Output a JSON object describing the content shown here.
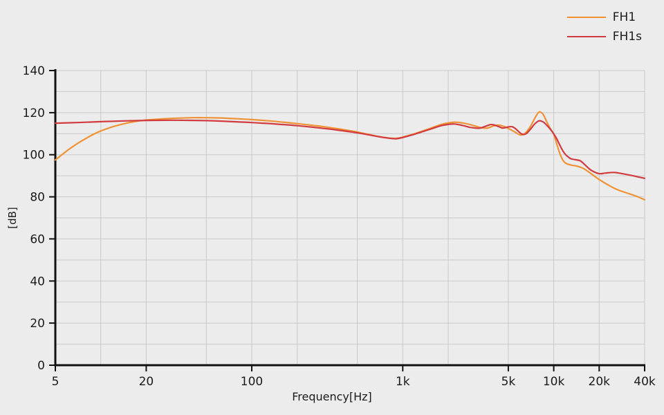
{
  "colors": {
    "background": "#ECECEC",
    "grid": "#C9C9C9",
    "axis": "#111111",
    "text": "#1A1A1A",
    "fh1_orange": "#EF9234",
    "fh1s_red": "#D13B40"
  },
  "chart_data": {
    "type": "line",
    "title": "",
    "xlabel": "Frequency[Hz]",
    "ylabel": "[dB]",
    "x_scale": "log",
    "xlim": [
      5,
      40000
    ],
    "ylim": [
      0,
      140
    ],
    "grid": true,
    "legend_position": "top-right",
    "x_major_ticks": [
      {
        "v": 5,
        "label": "5"
      },
      {
        "v": 20,
        "label": "20"
      },
      {
        "v": 100,
        "label": "100"
      },
      {
        "v": 1000,
        "label": "1k"
      },
      {
        "v": 5000,
        "label": "5k"
      },
      {
        "v": 10000,
        "label": "10k"
      },
      {
        "v": 20000,
        "label": "20k"
      },
      {
        "v": 40000,
        "label": "40k"
      }
    ],
    "x_grid": [
      10,
      20,
      50,
      100,
      200,
      500,
      1000,
      2000,
      5000,
      10000,
      20000,
      40000
    ],
    "y_ticks": [
      0,
      20,
      40,
      60,
      80,
      100,
      120,
      140
    ],
    "y_grid_step": 10,
    "series": [
      {
        "name": "FH1",
        "color": "#EF9234",
        "points": [
          [
            5,
            97.5
          ],
          [
            6,
            102
          ],
          [
            7,
            105.3
          ],
          [
            8,
            107.8
          ],
          [
            9,
            109.8
          ],
          [
            10,
            111.3
          ],
          [
            12,
            113.3
          ],
          [
            14,
            114.6
          ],
          [
            17,
            115.8
          ],
          [
            20,
            116.5
          ],
          [
            25,
            117
          ],
          [
            30,
            117.3
          ],
          [
            40,
            117.6
          ],
          [
            50,
            117.6
          ],
          [
            60,
            117.5
          ],
          [
            80,
            117.1
          ],
          [
            100,
            116.7
          ],
          [
            130,
            116.1
          ],
          [
            160,
            115.5
          ],
          [
            200,
            114.8
          ],
          [
            250,
            114
          ],
          [
            300,
            113.3
          ],
          [
            400,
            112
          ],
          [
            500,
            110.8
          ],
          [
            600,
            109.6
          ],
          [
            700,
            108.6
          ],
          [
            800,
            108
          ],
          [
            900,
            107.8
          ],
          [
            1000,
            108.4
          ],
          [
            1200,
            110
          ],
          [
            1500,
            112.4
          ],
          [
            1800,
            114.4
          ],
          [
            2000,
            115.1
          ],
          [
            2200,
            115.5
          ],
          [
            2500,
            115.1
          ],
          [
            2800,
            114.3
          ],
          [
            3200,
            113.1
          ],
          [
            3600,
            112.6
          ],
          [
            4000,
            113.7
          ],
          [
            4300,
            114.1
          ],
          [
            4700,
            113.4
          ],
          [
            5000,
            112.5
          ],
          [
            5500,
            110.9
          ],
          [
            6000,
            109.4
          ],
          [
            6500,
            110.4
          ],
          [
            7000,
            113.4
          ],
          [
            7500,
            117.4
          ],
          [
            8000,
            120.3
          ],
          [
            8500,
            119.2
          ],
          [
            9000,
            115.6
          ],
          [
            9500,
            112.4
          ],
          [
            10000,
            109.8
          ],
          [
            10500,
            104.8
          ],
          [
            11000,
            100.4
          ],
          [
            11500,
            97.4
          ],
          [
            12000,
            96
          ],
          [
            13000,
            95.1
          ],
          [
            14000,
            94.7
          ],
          [
            15000,
            94.1
          ],
          [
            16000,
            93.2
          ],
          [
            18000,
            90.6
          ],
          [
            20000,
            88.2
          ],
          [
            23000,
            85.6
          ],
          [
            26000,
            83.6
          ],
          [
            30000,
            82
          ],
          [
            35000,
            80.4
          ],
          [
            40000,
            78.6
          ]
        ]
      },
      {
        "name": "FH1s",
        "color": "#D13B40",
        "points": [
          [
            5,
            115
          ],
          [
            7,
            115.3
          ],
          [
            10,
            115.7
          ],
          [
            15,
            116.1
          ],
          [
            20,
            116.3
          ],
          [
            30,
            116.4
          ],
          [
            50,
            116.2
          ],
          [
            70,
            115.8
          ],
          [
            100,
            115.3
          ],
          [
            150,
            114.5
          ],
          [
            200,
            113.8
          ],
          [
            300,
            112.5
          ],
          [
            400,
            111.4
          ],
          [
            500,
            110.4
          ],
          [
            600,
            109.4
          ],
          [
            700,
            108.5
          ],
          [
            800,
            107.9
          ],
          [
            900,
            107.6
          ],
          [
            1000,
            108.2
          ],
          [
            1200,
            109.8
          ],
          [
            1500,
            112
          ],
          [
            1800,
            113.8
          ],
          [
            2000,
            114.4
          ],
          [
            2200,
            114.6
          ],
          [
            2500,
            113.9
          ],
          [
            2800,
            113
          ],
          [
            3200,
            112.6
          ],
          [
            3500,
            113.4
          ],
          [
            3800,
            114.3
          ],
          [
            4000,
            114.2
          ],
          [
            4300,
            113.4
          ],
          [
            4600,
            112.7
          ],
          [
            5000,
            113.2
          ],
          [
            5300,
            113.3
          ],
          [
            5600,
            112.3
          ],
          [
            6000,
            110.3
          ],
          [
            6300,
            109.6
          ],
          [
            6600,
            110.1
          ],
          [
            7000,
            112.1
          ],
          [
            7500,
            114.7
          ],
          [
            8000,
            116.1
          ],
          [
            8500,
            115.6
          ],
          [
            9000,
            114
          ],
          [
            9500,
            112.1
          ],
          [
            10000,
            109.9
          ],
          [
            10500,
            107.4
          ],
          [
            11000,
            104.4
          ],
          [
            11500,
            101.8
          ],
          [
            12000,
            100
          ],
          [
            12500,
            98.9
          ],
          [
            13000,
            98.1
          ],
          [
            14000,
            97.6
          ],
          [
            15000,
            97.1
          ],
          [
            16000,
            95.4
          ],
          [
            17000,
            93.6
          ],
          [
            18000,
            92.3
          ],
          [
            20000,
            91
          ],
          [
            22000,
            91.3
          ],
          [
            25000,
            91.6
          ],
          [
            28000,
            91.1
          ],
          [
            32000,
            90.3
          ],
          [
            36000,
            89.5
          ],
          [
            40000,
            88.8
          ]
        ]
      }
    ]
  },
  "legend": {
    "items": [
      {
        "label": "FH1"
      },
      {
        "label": "FH1s"
      }
    ]
  }
}
